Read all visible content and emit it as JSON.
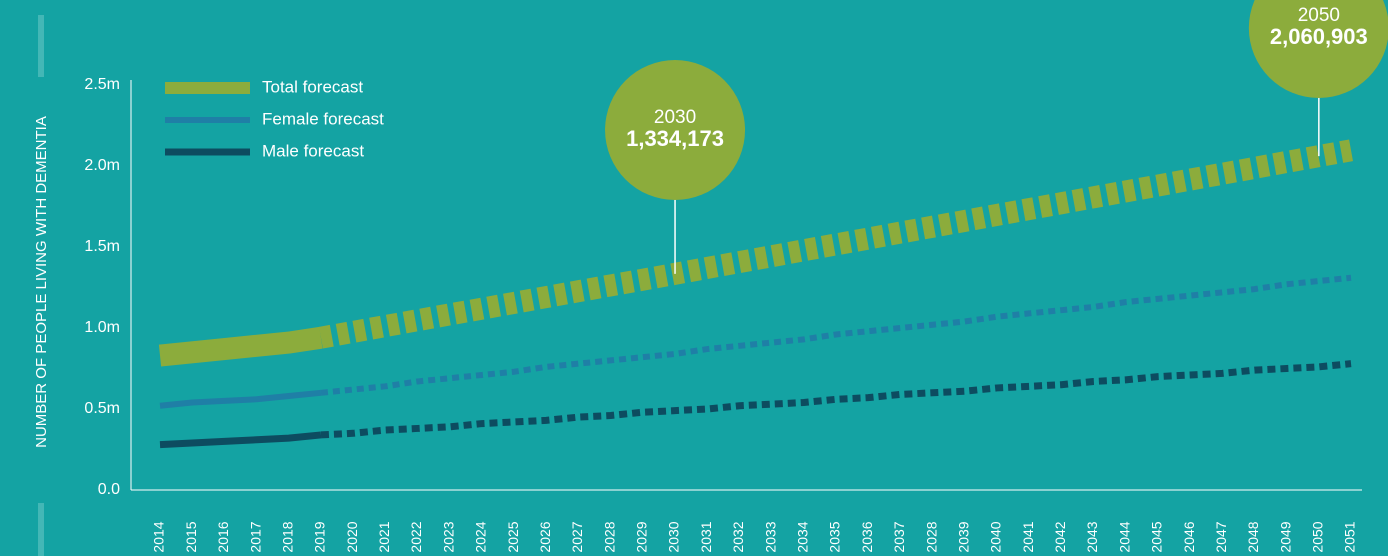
{
  "chart_data": {
    "type": "line",
    "y_axis_label": "NUMBER OF PEOPLE LIVING WITH DEMENTIA",
    "categories": [
      "2014",
      "2015",
      "2016",
      "2017",
      "2018",
      "2019",
      "2020",
      "2021",
      "2022",
      "2023",
      "2024",
      "2025",
      "2026",
      "2027",
      "2028",
      "2029",
      "2030",
      "2031",
      "2032",
      "2033",
      "2034",
      "2035",
      "2036",
      "2037",
      "2028",
      "2039",
      "2040",
      "2041",
      "2042",
      "2043",
      "2044",
      "2045",
      "2046",
      "2047",
      "2048",
      "2049",
      "2050",
      "2051"
    ],
    "historical_until": "2019",
    "series": [
      {
        "name": "Total forecast",
        "color": "#8cac3c",
        "values": [
          0.83,
          0.85,
          0.87,
          0.89,
          0.91,
          0.94,
          0.976,
          1.012,
          1.048,
          1.084,
          1.119,
          1.155,
          1.191,
          1.227,
          1.263,
          1.298,
          1.334173,
          1.371,
          1.407,
          1.443,
          1.48,
          1.516,
          1.552,
          1.589,
          1.625,
          1.661,
          1.698,
          1.734,
          1.77,
          1.807,
          1.843,
          1.879,
          1.916,
          1.952,
          1.988,
          2.025,
          2.060903,
          2.097
        ]
      },
      {
        "name": "Female forecast",
        "color": "#1f7fa6",
        "values": [
          0.52,
          0.54,
          0.55,
          0.56,
          0.58,
          0.6,
          0.62,
          0.64,
          0.67,
          0.69,
          0.71,
          0.73,
          0.76,
          0.78,
          0.8,
          0.82,
          0.84,
          0.87,
          0.89,
          0.91,
          0.93,
          0.96,
          0.98,
          1.0,
          1.02,
          1.04,
          1.07,
          1.09,
          1.11,
          1.13,
          1.16,
          1.18,
          1.2,
          1.22,
          1.24,
          1.27,
          1.29,
          1.31
        ]
      },
      {
        "name": "Male forecast",
        "color": "#0d4c60",
        "values": [
          0.28,
          0.29,
          0.3,
          0.31,
          0.32,
          0.34,
          0.35,
          0.37,
          0.38,
          0.39,
          0.41,
          0.42,
          0.43,
          0.45,
          0.46,
          0.48,
          0.49,
          0.5,
          0.52,
          0.53,
          0.54,
          0.56,
          0.57,
          0.59,
          0.6,
          0.61,
          0.63,
          0.64,
          0.65,
          0.67,
          0.68,
          0.7,
          0.71,
          0.72,
          0.74,
          0.75,
          0.76,
          0.78
        ]
      }
    ],
    "annotations": [
      {
        "x": "2030",
        "label": "1,334,173"
      },
      {
        "x": "2050",
        "label": "2,060,903"
      }
    ],
    "ylim": [
      0,
      2.5
    ],
    "yticks": [
      {
        "value": 0,
        "label": "0.0"
      },
      {
        "value": 0.5,
        "label": "0.5m"
      },
      {
        "value": 1.0,
        "label": "1.0m"
      },
      {
        "value": 1.5,
        "label": "1.5m"
      },
      {
        "value": 2.0,
        "label": "2.0m"
      },
      {
        "value": 2.5,
        "label": "2.5m"
      }
    ],
    "legend": "upper left"
  }
}
